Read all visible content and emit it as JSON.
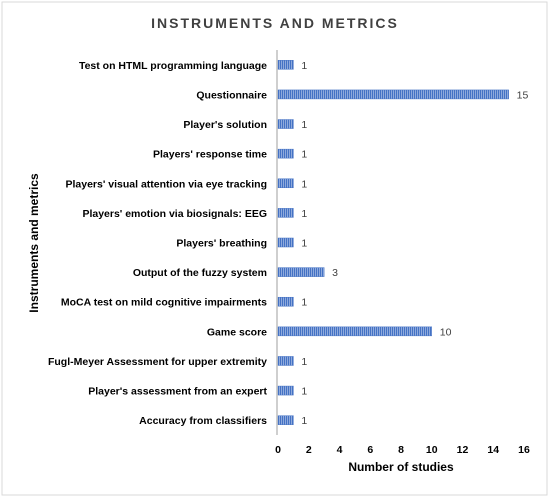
{
  "chart_data": {
    "type": "bar",
    "orientation": "horizontal",
    "title": "INSTRUMENTS AND METRICS",
    "xlabel": "Number of studies",
    "ylabel": "Instruments and metrics",
    "categories": [
      "Test on HTML programming language",
      "Questionnaire",
      "Player's solution",
      "Players' response time",
      "Players' visual attention via eye tracking",
      "Players' emotion via biosignals: EEG",
      "Players' breathing",
      "Output of the fuzzy system",
      "MoCA test on mild cognitive impairments",
      "Game score",
      "Fugl-Meyer Assessment for upper extremity",
      "Player's assessment from an expert",
      "Accuracy from classifiers"
    ],
    "values": [
      1,
      15,
      1,
      1,
      1,
      1,
      1,
      3,
      1,
      10,
      1,
      1,
      1
    ],
    "data_labels": [
      "1",
      "15",
      "1",
      "1",
      "1",
      "1",
      "1",
      "3",
      "1",
      "10",
      "1",
      "1",
      "1"
    ],
    "xlim": [
      0,
      16
    ],
    "xticks": [
      0,
      2,
      4,
      6,
      8,
      10,
      12,
      14,
      16
    ],
    "xtick_labels": [
      "0",
      "2",
      "4",
      "6",
      "8",
      "10",
      "12",
      "14",
      "16"
    ],
    "grid": false,
    "legend": "none",
    "bar_color": "#4472c4"
  }
}
